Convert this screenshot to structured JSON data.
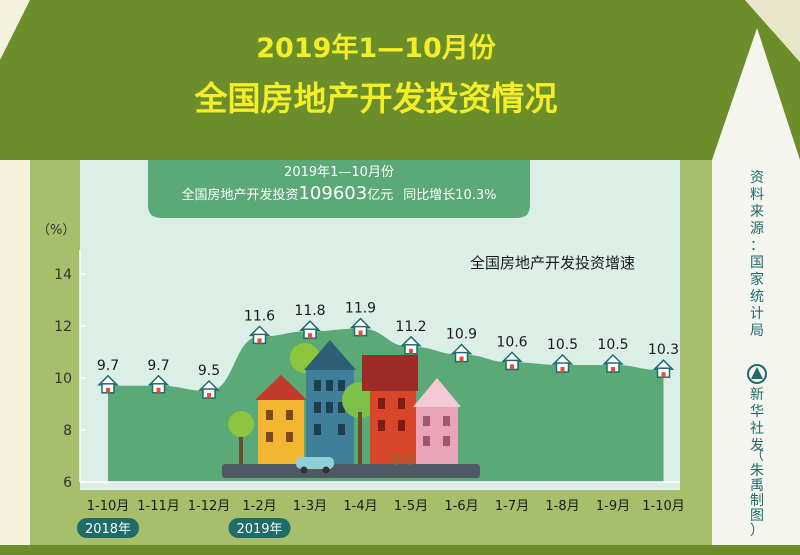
{
  "header": {
    "title_line1": "2019年1—10月份",
    "title_line2": "全国房地产开发投资情况"
  },
  "summary": {
    "line1": "2019年1—10月份",
    "prefix": "全国房地产开发投资",
    "amount": "109603",
    "unit": "亿元",
    "growth": "同比增长10.3%"
  },
  "sidebar": {
    "source_text": "资料来源：国家统计局",
    "agency_text": "新华社发",
    "author_text": "（朱禹制图）"
  },
  "colors": {
    "roof_green": "#6b8e2a",
    "area_green": "#5aa977",
    "title_yellow": "#f4ee28",
    "plot_bg": "#dcefe6",
    "year_badge": "#1e6b6a"
  },
  "chart_data": {
    "type": "area",
    "title": "全国房地产开发投资增速",
    "ylabel": "（%）",
    "ylim": [
      6,
      14
    ],
    "yticks": [
      6,
      8,
      10,
      12,
      14
    ],
    "categories": [
      "1-10月",
      "1-11月",
      "1-12月",
      "1-2月",
      "1-3月",
      "1-4月",
      "1-5月",
      "1-6月",
      "1-7月",
      "1-8月",
      "1-9月",
      "1-10月"
    ],
    "values": [
      9.7,
      9.7,
      9.5,
      11.6,
      11.8,
      11.9,
      11.2,
      10.9,
      10.6,
      10.5,
      10.5,
      10.3
    ],
    "value_labels": [
      "9.7",
      "9.7",
      "9.5",
      "11.6",
      "11.8",
      "11.9",
      "11.2",
      "10.9",
      "10.6",
      "10.5",
      "10.5",
      "10.3"
    ],
    "year_labels": [
      {
        "text": "2018年",
        "category_index": 0
      },
      {
        "text": "2019年",
        "category_index": 3
      }
    ],
    "grid": false,
    "marker": "house-icon"
  }
}
